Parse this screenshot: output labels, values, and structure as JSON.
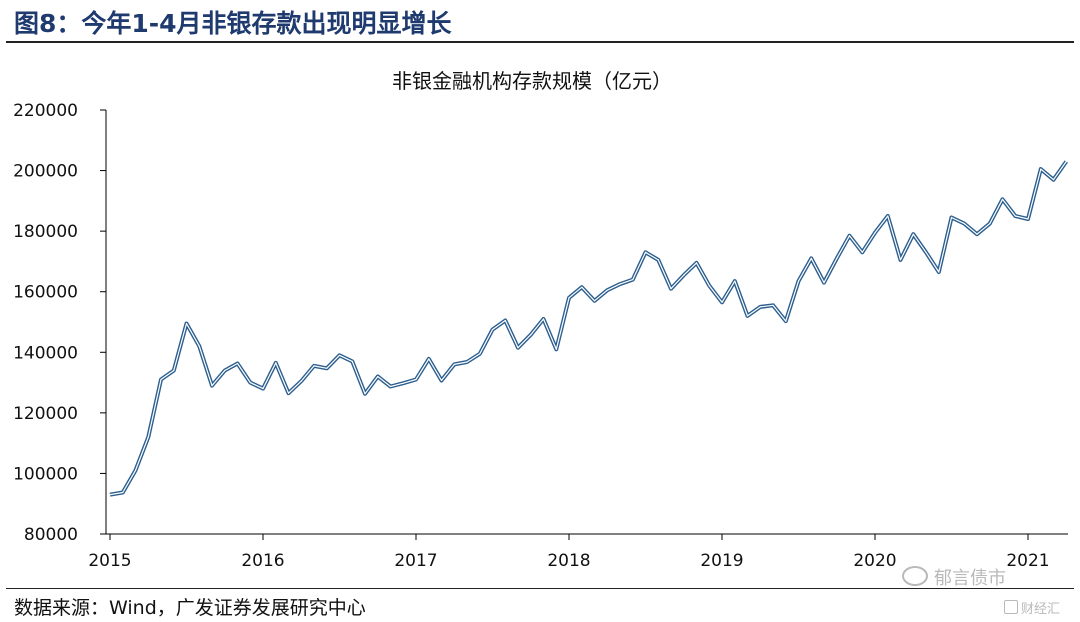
{
  "header": {
    "figure_title": "图8：今年1-4月非银存款出现明显增长"
  },
  "footer": {
    "source": "数据来源：Wind，广发证券发展研究中心"
  },
  "watermark": {
    "text": "郁言债市",
    "text2": "财经汇"
  },
  "colors": {
    "line_outer": "#2c5f8f",
    "line_inner": "#ffffff",
    "axis": "#000000",
    "title": "#1f3a6e"
  },
  "chart_data": {
    "type": "line",
    "title": "非银金融机构存款规模（亿元）",
    "xlabel": "",
    "ylabel": "",
    "x_ticks": [
      "2015",
      "2016",
      "2017",
      "2018",
      "2019",
      "2020",
      "2021"
    ],
    "y_ticks": [
      "80000",
      "100000",
      "120000",
      "140000",
      "160000",
      "180000",
      "200000",
      "220000"
    ],
    "ylim": [
      80000,
      220000
    ],
    "x_start": "2015-01",
    "x_end": "2021-04",
    "grid": false,
    "series": [
      {
        "values": [
          93000,
          93700,
          101000,
          112000,
          131000,
          134000,
          149500,
          142000,
          129000,
          134000,
          136300,
          130000,
          128000,
          136500,
          126500,
          130500,
          135500,
          134700,
          139000,
          137000,
          126300,
          132000,
          128700,
          129800,
          131000,
          137800,
          130700,
          136000,
          136800,
          139500,
          147500,
          150500,
          141500,
          145800,
          151000,
          141000,
          158000,
          161500,
          157000,
          160500,
          162500,
          164000,
          173000,
          170500,
          161000,
          165500,
          169500,
          162000,
          156500,
          163500,
          152000,
          155000,
          155500,
          150300,
          163500,
          171000,
          163000,
          171000,
          178500,
          173000,
          179500,
          185000,
          170500,
          179000,
          173000,
          166500,
          184500,
          182500,
          179000,
          182500,
          190500,
          185000,
          184000,
          200500,
          197000,
          203000
        ]
      }
    ]
  }
}
